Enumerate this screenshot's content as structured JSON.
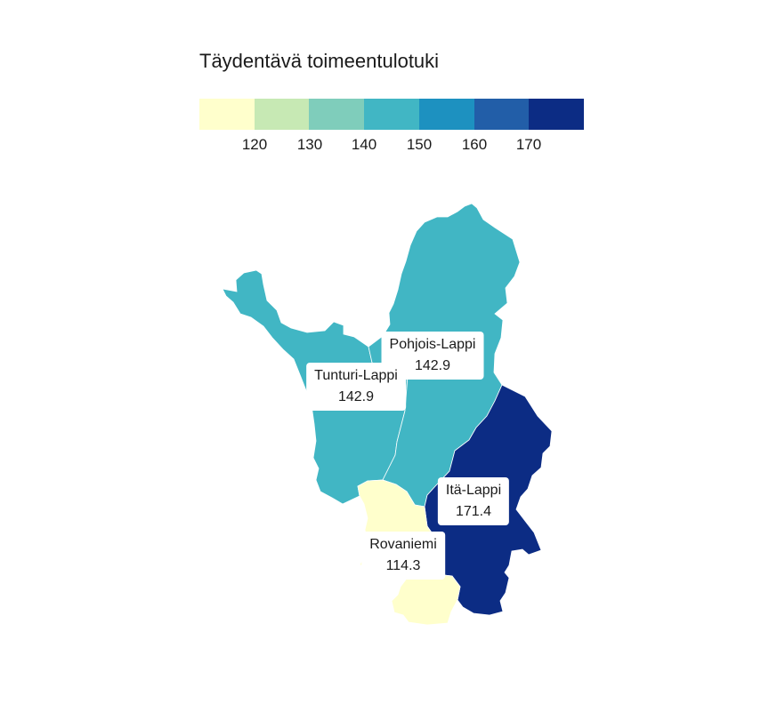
{
  "legend": {
    "title": "Täydentävä toimeentulotuki",
    "colors": [
      "#ffffcc",
      "#c7e9b4",
      "#7fcdbb",
      "#41b6c4",
      "#1d91c0",
      "#225ea8",
      "#0c2c84"
    ],
    "ticks": [
      "120",
      "130",
      "140",
      "150",
      "160",
      "170"
    ]
  },
  "regions": [
    {
      "name": "Pohjois-Lappi",
      "value": "142.9",
      "color": "#41b6c4"
    },
    {
      "name": "Tunturi-Lappi",
      "value": "142.9",
      "color": "#41b6c4"
    },
    {
      "name": "Itä-Lappi",
      "value": "171.4",
      "color": "#0c2c84"
    },
    {
      "name": "Rovaniemi",
      "value": "114.3",
      "color": "#ffffcc"
    }
  ]
}
